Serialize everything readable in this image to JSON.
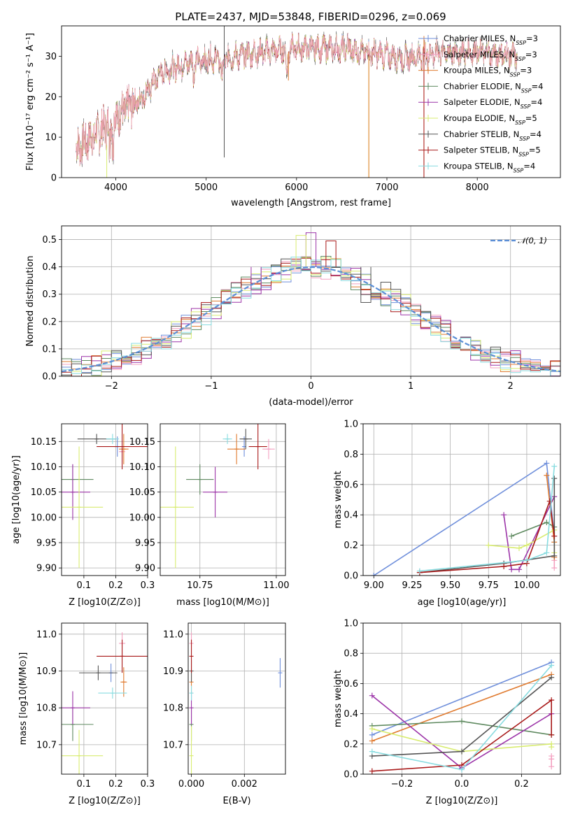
{
  "title": "PLATE=2437, MJD=53848, FIBERID=0296, z=0.069",
  "colors": {
    "Chabrier MILES": "#6f8fdb",
    "Salpeter MILES": "#f4a0c0",
    "Kroupa MILES": "#e07b30",
    "Chabrier ELODIE": "#5f8a60",
    "Salpeter ELODIE": "#9c34a8",
    "Kroupa ELODIE": "#d8ec70",
    "Chabrier STELIB": "#555555",
    "Salpeter STELIB": "#a81818",
    "Kroupa STELIB": "#88dce0"
  },
  "legend_models": [
    {
      "name": "Chabrier MILES",
      "n": "3"
    },
    {
      "name": "Salpeter MILES",
      "n": "3"
    },
    {
      "name": "Kroupa MILES",
      "n": "3"
    },
    {
      "name": "Chabrier ELODIE",
      "n": "4"
    },
    {
      "name": "Salpeter ELODIE",
      "n": "4"
    },
    {
      "name": "Kroupa ELODIE",
      "n": "5"
    },
    {
      "name": "Chabrier STELIB",
      "n": "4"
    },
    {
      "name": "Salpeter STELIB",
      "n": "5"
    },
    {
      "name": "Kroupa STELIB",
      "n": "4"
    }
  ],
  "nssp_label": "N",
  "nssp_sub": "SSP",
  "chart_data": [
    {
      "type": "line",
      "id": "spectrum",
      "xlabel": "wavelength [Angstrom, rest frame]",
      "ylabel": "Flux [fλ10⁻¹⁷ erg cm⁻² s⁻¹ A⁻¹]",
      "xlim": [
        3400,
        8920
      ],
      "ylim": [
        0,
        37.5
      ],
      "xticks": [
        4000,
        5000,
        6000,
        7000,
        8000
      ],
      "yticks": [
        0,
        10,
        20,
        30
      ],
      "continuum": [
        [
          3550,
          7
        ],
        [
          3800,
          11
        ],
        [
          4000,
          15
        ],
        [
          4300,
          20
        ],
        [
          4500,
          26
        ],
        [
          4800,
          28.5
        ],
        [
          5200,
          29.5
        ],
        [
          5600,
          31
        ],
        [
          6000,
          32
        ],
        [
          6400,
          32
        ],
        [
          6800,
          31
        ],
        [
          7200,
          29.5
        ],
        [
          7600,
          31
        ],
        [
          8000,
          31
        ],
        [
          8450,
          30
        ]
      ]
    },
    {
      "type": "histogram",
      "id": "residuals",
      "xlabel": "(data-model)/error",
      "ylabel": "Normed distribution",
      "xlim": [
        -2.5,
        2.5
      ],
      "ylim": [
        0,
        0.55
      ],
      "xticks": [
        -2,
        -1,
        0,
        1,
        2
      ],
      "yticks": [
        0.0,
        0.1,
        0.2,
        0.3,
        0.4,
        0.5
      ],
      "reference_label": "𝒩(0, 1)",
      "reference_color": "#5b8fd6",
      "outliers": [
        {
          "x": 0.0,
          "y": 0.525
        },
        {
          "x": -0.1,
          "y": 0.515
        },
        {
          "x": 0.2,
          "y": 0.495
        },
        {
          "x": -0.55,
          "y": 0.315
        },
        {
          "x": 0.55,
          "y": 0.27
        }
      ]
    },
    {
      "type": "scatter",
      "id": "age-vs-Z",
      "xlabel": "Z [log10(Z/Z⊙)]",
      "ylabel": "age  [log10(age/yr)]",
      "xlim": [
        0.03,
        0.3
      ],
      "ylim": [
        9.885,
        10.185
      ],
      "xticks": [
        0.1,
        0.2,
        0.3
      ],
      "yticks": [
        9.9,
        9.95,
        10.0,
        10.05,
        10.1,
        10.15
      ],
      "points": [
        {
          "model": "Chabrier MILES",
          "x": 0.205,
          "y": 10.14,
          "dx": 0.01,
          "dy": 0.02
        },
        {
          "model": "Salpeter MILES",
          "x": 0.22,
          "y": 10.13,
          "dx": 0.01,
          "dy": 0.02
        },
        {
          "model": "Kroupa MILES",
          "x": 0.225,
          "y": 10.135,
          "dx": 0.015,
          "dy": 0.03
        },
        {
          "model": "Chabrier ELODIE",
          "x": 0.065,
          "y": 10.075,
          "dx": 0.065,
          "dy": 0.03
        },
        {
          "model": "Salpeter ELODIE",
          "x": 0.065,
          "y": 10.05,
          "dx": 0.055,
          "dy": 0.055
        },
        {
          "model": "Kroupa ELODIE",
          "x": 0.085,
          "y": 10.02,
          "dx": 0.075,
          "dy": 0.12
        },
        {
          "model": "Chabrier STELIB",
          "x": 0.14,
          "y": 10.155,
          "dx": 0.06,
          "dy": 0.01
        },
        {
          "model": "Salpeter STELIB",
          "x": 0.22,
          "y": 10.14,
          "dx": 0.08,
          "dy": 0.045
        },
        {
          "model": "Kroupa STELIB",
          "x": 0.19,
          "y": 10.155,
          "dx": 0.02,
          "dy": 0.01
        }
      ]
    },
    {
      "type": "scatter",
      "id": "age-vs-mass",
      "xlabel": "mass [log10(M/M⊙)]",
      "ylabel": "",
      "xlim": [
        10.62,
        11.03
      ],
      "ylim": [
        9.885,
        10.185
      ],
      "xticks": [
        10.75,
        11.0
      ],
      "yticks": [
        9.9,
        9.95,
        10.0,
        10.05,
        10.1,
        10.15
      ],
      "points": [
        {
          "model": "Chabrier MILES",
          "x": 10.895,
          "y": 10.14,
          "dx": 0.005,
          "dy": 0.02
        },
        {
          "model": "Salpeter MILES",
          "x": 10.975,
          "y": 10.135,
          "dx": 0.02,
          "dy": 0.02
        },
        {
          "model": "Kroupa MILES",
          "x": 10.87,
          "y": 10.135,
          "dx": 0.03,
          "dy": 0.03
        },
        {
          "model": "Chabrier ELODIE",
          "x": 10.75,
          "y": 10.075,
          "dx": 0.045,
          "dy": 0.03
        },
        {
          "model": "Salpeter ELODIE",
          "x": 10.8,
          "y": 10.05,
          "dx": 0.04,
          "dy": 0.05
        },
        {
          "model": "Kroupa ELODIE",
          "x": 10.67,
          "y": 10.02,
          "dx": 0.06,
          "dy": 0.12
        },
        {
          "model": "Chabrier STELIB",
          "x": 10.9,
          "y": 10.155,
          "dx": 0.02,
          "dy": 0.02
        },
        {
          "model": "Salpeter STELIB",
          "x": 10.94,
          "y": 10.14,
          "dx": 0.03,
          "dy": 0.045
        },
        {
          "model": "Kroupa STELIB",
          "x": 10.84,
          "y": 10.155,
          "dx": 0.015,
          "dy": 0.01
        }
      ]
    },
    {
      "type": "line",
      "id": "mass-weight-vs-age",
      "xlabel": "age  [log10(age/yr)]",
      "ylabel": "mass weight",
      "xlim": [
        8.93,
        10.22
      ],
      "ylim": [
        0,
        1
      ],
      "xticks": [
        9.0,
        9.25,
        9.5,
        9.75,
        10.0
      ],
      "yticks": [
        0.0,
        0.2,
        0.4,
        0.6,
        0.8,
        1.0
      ],
      "series": [
        {
          "model": "Chabrier MILES",
          "x": [
            9.0,
            10.13,
            10.18
          ],
          "y": [
            0.0,
            0.74,
            0.26
          ]
        },
        {
          "model": "Salpeter MILES",
          "x": [
            10.18,
            10.18,
            10.18
          ],
          "y": [
            0.12,
            0.05,
            0.1
          ]
        },
        {
          "model": "Kroupa MILES",
          "x": [
            10.13,
            10.18,
            10.18
          ],
          "y": [
            0.66,
            0.22,
            0.12
          ]
        },
        {
          "model": "Chabrier ELODIE",
          "x": [
            9.9,
            10.13,
            10.18
          ],
          "y": [
            0.26,
            0.35,
            0.32
          ]
        },
        {
          "model": "Salpeter ELODIE",
          "x": [
            9.85,
            9.9,
            9.95,
            10.18
          ],
          "y": [
            0.4,
            0.04,
            0.04,
            0.52
          ]
        },
        {
          "model": "Kroupa ELODIE",
          "x": [
            9.75,
            9.95,
            10.0,
            10.18,
            10.18
          ],
          "y": [
            0.2,
            0.18,
            0.2,
            0.3,
            0.15
          ]
        },
        {
          "model": "Chabrier STELIB",
          "x": [
            9.3,
            9.85,
            10.18,
            10.18
          ],
          "y": [
            0.02,
            0.08,
            0.13,
            0.64
          ]
        },
        {
          "model": "Salpeter STELIB",
          "x": [
            9.3,
            9.85,
            10.0,
            10.15,
            10.18
          ],
          "y": [
            0.02,
            0.06,
            0.08,
            0.49,
            0.26
          ]
        },
        {
          "model": "Kroupa STELIB",
          "x": [
            9.3,
            10.0,
            10.13,
            10.18
          ],
          "y": [
            0.03,
            0.1,
            0.15,
            0.72
          ]
        }
      ]
    },
    {
      "type": "scatter",
      "id": "mass-vs-Z",
      "xlabel": "Z [log10(Z/Z⊙)]",
      "ylabel": "mass [log10(M/M⊙)]",
      "xlim": [
        0.03,
        0.3
      ],
      "ylim": [
        10.62,
        11.03
      ],
      "xticks": [
        0.1,
        0.2,
        0.3
      ],
      "yticks": [
        10.7,
        10.8,
        10.9,
        11.0
      ],
      "points": [
        {
          "model": "Chabrier MILES",
          "x": 0.185,
          "y": 10.895,
          "dx": 0.005,
          "dy": 0.025
        },
        {
          "model": "Salpeter MILES",
          "x": 0.22,
          "y": 10.975,
          "dx": 0.01,
          "dy": 0.03
        },
        {
          "model": "Kroupa MILES",
          "x": 0.225,
          "y": 10.87,
          "dx": 0.01,
          "dy": 0.04
        },
        {
          "model": "Chabrier ELODIE",
          "x": 0.065,
          "y": 10.755,
          "dx": 0.065,
          "dy": 0.045
        },
        {
          "model": "Salpeter ELODIE",
          "x": 0.065,
          "y": 10.8,
          "dx": 0.055,
          "dy": 0.045
        },
        {
          "model": "Kroupa ELODIE",
          "x": 0.085,
          "y": 10.67,
          "dx": 0.075,
          "dy": 0.07
        },
        {
          "model": "Chabrier STELIB",
          "x": 0.145,
          "y": 10.895,
          "dx": 0.06,
          "dy": 0.02
        },
        {
          "model": "Salpeter STELIB",
          "x": 0.22,
          "y": 10.94,
          "dx": 0.08,
          "dy": 0.045
        },
        {
          "model": "Kroupa STELIB",
          "x": 0.19,
          "y": 10.84,
          "dx": 0.045,
          "dy": 0.015
        }
      ]
    },
    {
      "type": "scatter",
      "id": "mass-vs-EBV",
      "xlabel": "E(B-V)",
      "ylabel": "",
      "xlim": [
        -0.00012,
        0.00355
      ],
      "ylim": [
        10.62,
        11.03
      ],
      "xticks": [
        0.0,
        0.002
      ],
      "yticks": [
        10.7,
        10.8,
        10.9,
        11.0
      ],
      "points": [
        {
          "model": "Chabrier MILES",
          "x": 0.00335,
          "y": 10.895,
          "dx": 0,
          "dy": 0.04
        },
        {
          "model": "Salpeter MILES",
          "x": 0.0,
          "y": 10.975,
          "dx": 0,
          "dy": 0.03
        },
        {
          "model": "Kroupa MILES",
          "x": 0.0,
          "y": 10.87,
          "dx": 0,
          "dy": 0.03
        },
        {
          "model": "Chabrier ELODIE",
          "x": 0.0,
          "y": 10.755,
          "dx": 0,
          "dy": 0.045
        },
        {
          "model": "Salpeter ELODIE",
          "x": 0.0,
          "y": 10.8,
          "dx": 0,
          "dy": 0.045
        },
        {
          "model": "Kroupa ELODIE",
          "x": 0.0,
          "y": 10.67,
          "dx": 0,
          "dy": 0.08
        },
        {
          "model": "Chabrier STELIB",
          "x": 0.0,
          "y": 10.9,
          "dx": 0,
          "dy": 0.03
        },
        {
          "model": "Salpeter STELIB",
          "x": 0.0,
          "y": 10.94,
          "dx": 0,
          "dy": 0.045
        },
        {
          "model": "Kroupa STELIB",
          "x": 0.0,
          "y": 10.84,
          "dx": 0,
          "dy": 0.02
        }
      ]
    },
    {
      "type": "line",
      "id": "mass-weight-vs-Z",
      "xlabel": "Z [log10(Z/Z⊙)]",
      "ylabel": "mass weight",
      "xlim": [
        -0.33,
        0.33
      ],
      "ylim": [
        0,
        1
      ],
      "xticks": [
        -0.2,
        0.0,
        0.2
      ],
      "yticks": [
        0.0,
        0.2,
        0.4,
        0.6,
        0.8,
        1.0
      ],
      "series": [
        {
          "model": "Chabrier MILES",
          "x": [
            -0.3,
            0.3
          ],
          "y": [
            0.26,
            0.74
          ]
        },
        {
          "model": "Salpeter MILES",
          "x": [
            0.3,
            0.3,
            0.3
          ],
          "y": [
            0.12,
            0.05,
            0.1
          ]
        },
        {
          "model": "Kroupa MILES",
          "x": [
            -0.3,
            0.3
          ],
          "y": [
            0.22,
            0.66
          ]
        },
        {
          "model": "Chabrier ELODIE",
          "x": [
            -0.3,
            0.0,
            0.3
          ],
          "y": [
            0.32,
            0.35,
            0.26
          ]
        },
        {
          "model": "Salpeter ELODIE",
          "x": [
            -0.3,
            0.0,
            0.3
          ],
          "y": [
            0.52,
            0.04,
            0.4
          ]
        },
        {
          "model": "Kroupa ELODIE",
          "x": [
            -0.3,
            0.0,
            0.3,
            0.3
          ],
          "y": [
            0.3,
            0.15,
            0.2,
            0.18
          ]
        },
        {
          "model": "Chabrier STELIB",
          "x": [
            -0.3,
            0.0,
            0.3
          ],
          "y": [
            0.12,
            0.15,
            0.64
          ]
        },
        {
          "model": "Salpeter STELIB",
          "x": [
            -0.3,
            0.0,
            0.3,
            0.3
          ],
          "y": [
            0.02,
            0.06,
            0.49,
            0.26
          ]
        },
        {
          "model": "Kroupa STELIB",
          "x": [
            -0.3,
            0.0,
            0.3
          ],
          "y": [
            0.15,
            0.03,
            0.72
          ]
        }
      ]
    }
  ]
}
